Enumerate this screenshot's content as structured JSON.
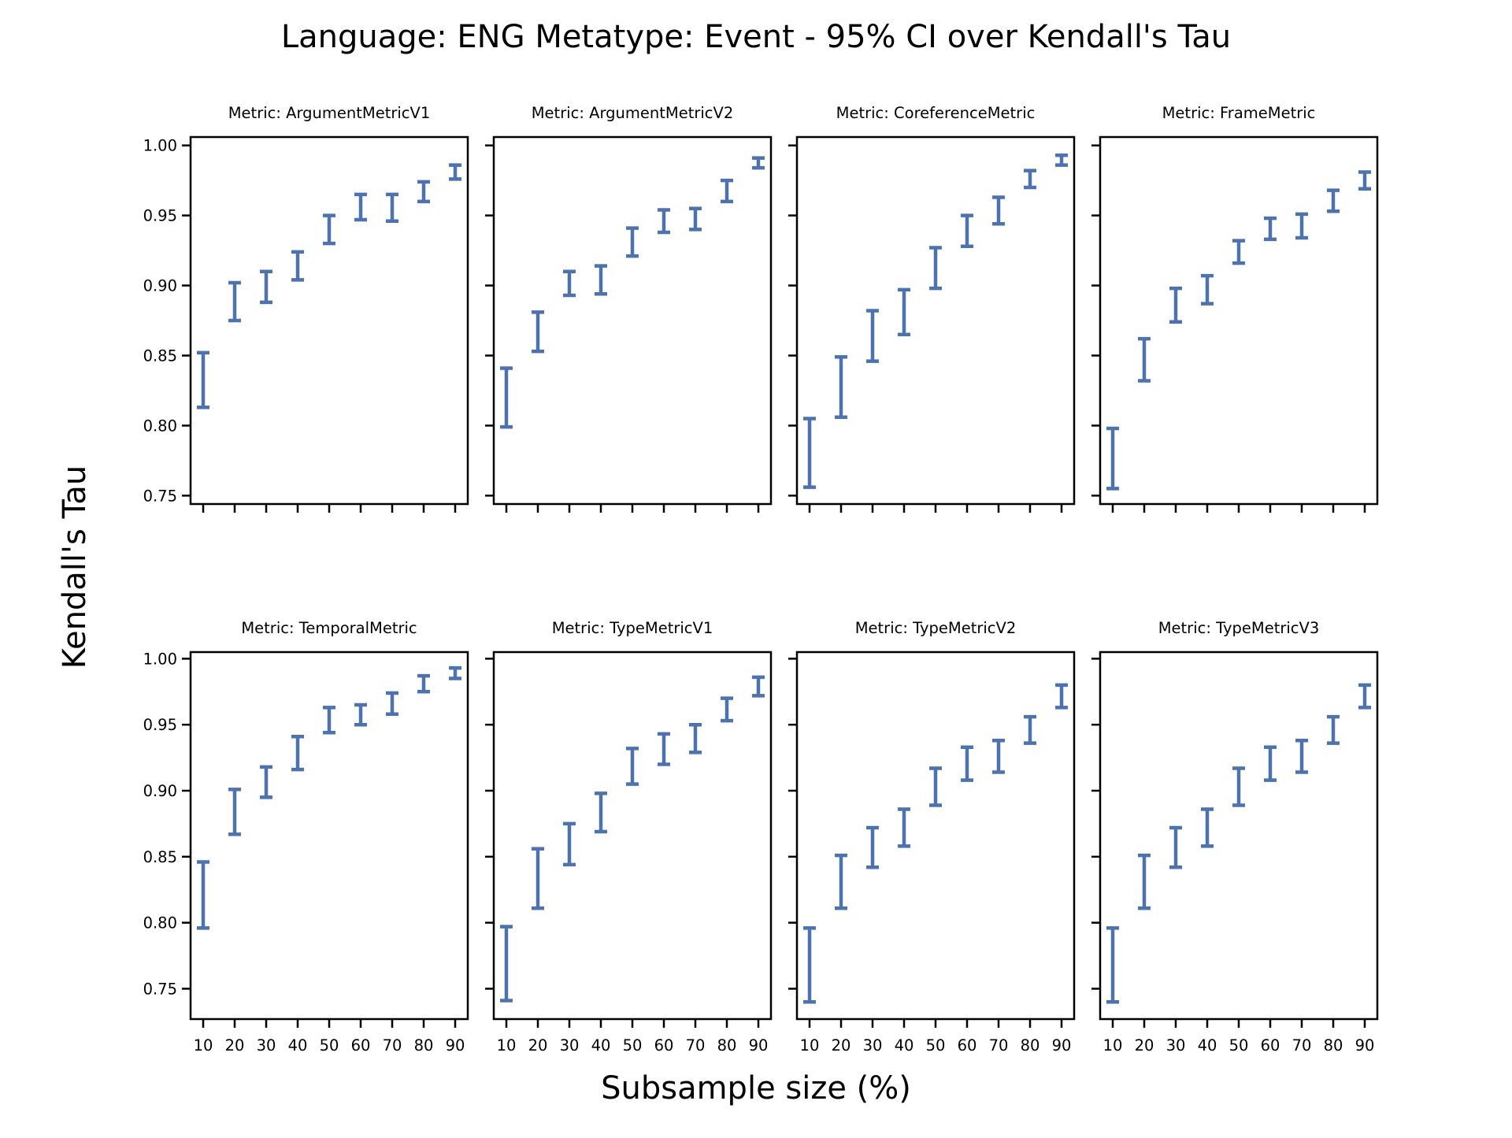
{
  "chart_data": {
    "type": "errorbar",
    "title": "Language: ENG Metatype: Event - 95% CI over Kendall's Tau",
    "xlabel": "Subsample size (%)",
    "ylabel": "Kendall's Tau",
    "x": [
      10,
      20,
      30,
      40,
      50,
      60,
      70,
      80,
      90
    ],
    "xticklabels": [
      "10",
      "20",
      "30",
      "40",
      "50",
      "60",
      "70",
      "80",
      "90"
    ],
    "yticks": [
      0.75,
      0.8,
      0.85,
      0.9,
      0.95,
      1.0
    ],
    "yticklabels": [
      "0.75",
      "0.80",
      "0.85",
      "0.90",
      "0.95",
      "1.00"
    ],
    "ylim_top_row": [
      0.744,
      1.006
    ],
    "ylim_bottom_row": [
      0.727,
      1.005
    ],
    "sharey": "row",
    "sharex": true,
    "grid": false,
    "color": "#4c72b0",
    "panels": [
      {
        "title": "Metric: ArgumentMetricV1",
        "lower": [
          0.813,
          0.875,
          0.888,
          0.904,
          0.93,
          0.947,
          0.946,
          0.96,
          0.976
        ],
        "upper": [
          0.852,
          0.902,
          0.91,
          0.924,
          0.95,
          0.965,
          0.965,
          0.974,
          0.986
        ]
      },
      {
        "title": "Metric: ArgumentMetricV2",
        "lower": [
          0.799,
          0.853,
          0.893,
          0.894,
          0.921,
          0.938,
          0.94,
          0.96,
          0.984
        ],
        "upper": [
          0.841,
          0.881,
          0.91,
          0.914,
          0.941,
          0.954,
          0.955,
          0.975,
          0.991
        ]
      },
      {
        "title": "Metric: CoreferenceMetric",
        "lower": [
          0.756,
          0.806,
          0.846,
          0.865,
          0.898,
          0.928,
          0.944,
          0.97,
          0.986
        ],
        "upper": [
          0.805,
          0.849,
          0.882,
          0.897,
          0.927,
          0.95,
          0.963,
          0.982,
          0.993
        ]
      },
      {
        "title": "Metric: FrameMetric",
        "lower": [
          0.755,
          0.832,
          0.874,
          0.887,
          0.916,
          0.933,
          0.934,
          0.953,
          0.969
        ],
        "upper": [
          0.798,
          0.862,
          0.898,
          0.907,
          0.932,
          0.948,
          0.951,
          0.968,
          0.981
        ]
      },
      {
        "title": "Metric: TemporalMetric",
        "lower": [
          0.796,
          0.867,
          0.895,
          0.916,
          0.944,
          0.95,
          0.958,
          0.975,
          0.985
        ],
        "upper": [
          0.846,
          0.901,
          0.918,
          0.941,
          0.963,
          0.965,
          0.974,
          0.987,
          0.993
        ]
      },
      {
        "title": "Metric: TypeMetricV1",
        "lower": [
          0.741,
          0.811,
          0.844,
          0.869,
          0.905,
          0.92,
          0.929,
          0.953,
          0.972
        ],
        "upper": [
          0.797,
          0.856,
          0.875,
          0.898,
          0.932,
          0.943,
          0.95,
          0.97,
          0.986
        ]
      },
      {
        "title": "Metric: TypeMetricV2",
        "lower": [
          0.74,
          0.811,
          0.842,
          0.858,
          0.889,
          0.908,
          0.914,
          0.936,
          0.963
        ],
        "upper": [
          0.796,
          0.851,
          0.872,
          0.886,
          0.917,
          0.933,
          0.938,
          0.956,
          0.98
        ]
      },
      {
        "title": "Metric: TypeMetricV3",
        "lower": [
          0.74,
          0.811,
          0.842,
          0.858,
          0.889,
          0.908,
          0.914,
          0.936,
          0.963
        ],
        "upper": [
          0.796,
          0.851,
          0.872,
          0.886,
          0.917,
          0.933,
          0.938,
          0.956,
          0.98
        ]
      }
    ]
  }
}
